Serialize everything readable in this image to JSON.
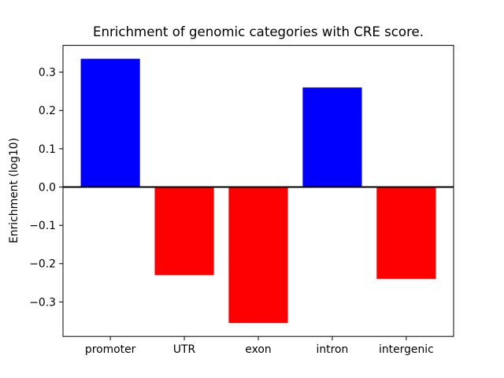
{
  "chart_data": {
    "type": "bar",
    "title": "Enrichment of genomic categories with CRE score.",
    "xlabel": "",
    "ylabel": "Enrichment (log10)",
    "categories": [
      "promoter",
      "UTR",
      "exon",
      "intron",
      "intergenic"
    ],
    "values": [
      0.335,
      -0.23,
      -0.355,
      0.26,
      -0.24
    ],
    "positive_color": "#0000ff",
    "negative_color": "#ff0000",
    "yticks": [
      0.3,
      0.2,
      0.1,
      0.0,
      -0.1,
      -0.2,
      -0.3
    ],
    "ylim": [
      -0.39,
      0.37
    ],
    "xlim": [
      -0.64,
      4.64
    ],
    "bar_width": 0.8,
    "zero_line": true,
    "grid": false,
    "legend_position": "none",
    "background_color": "#ffffff",
    "axes_color": "#000000"
  }
}
